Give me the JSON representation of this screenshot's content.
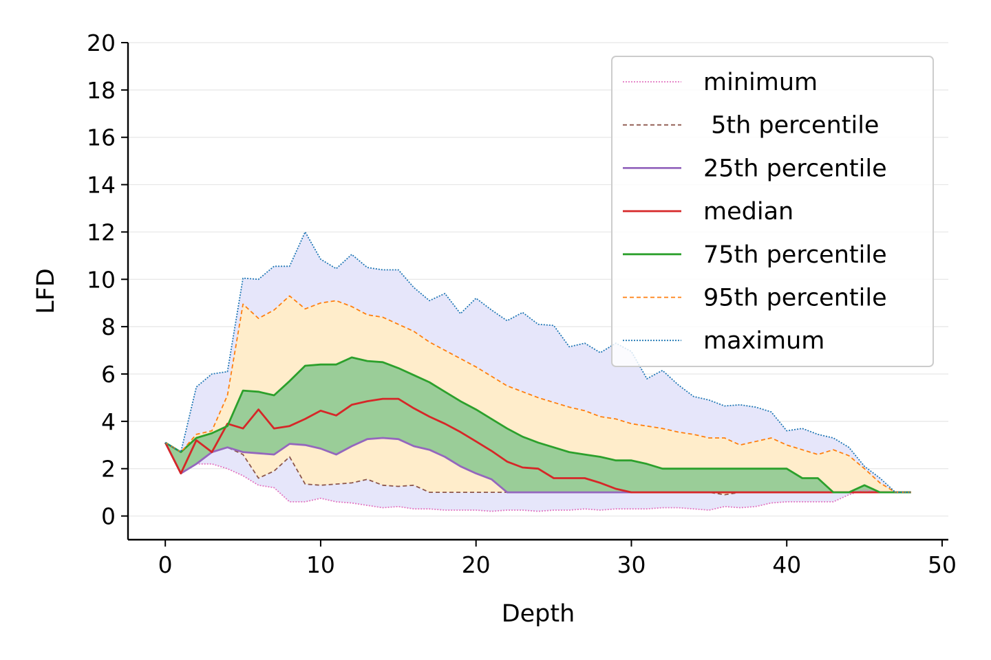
{
  "chart_data": {
    "type": "line",
    "xlabel": "Depth",
    "ylabel": "LFD",
    "xlim": [
      -2.4,
      50.4
    ],
    "ylim": [
      -1,
      20
    ],
    "xticks": [
      0,
      10,
      20,
      30,
      40,
      50
    ],
    "yticks": [
      0,
      2,
      4,
      6,
      8,
      10,
      12,
      14,
      16,
      18,
      20
    ],
    "grid": "horizontal",
    "legend_position": "top-right",
    "x": [
      0,
      1,
      2,
      3,
      4,
      5,
      6,
      7,
      8,
      9,
      10,
      11,
      12,
      13,
      14,
      15,
      16,
      17,
      18,
      19,
      20,
      21,
      22,
      23,
      24,
      25,
      26,
      27,
      28,
      29,
      30,
      31,
      32,
      33,
      34,
      35,
      36,
      37,
      38,
      39,
      40,
      41,
      42,
      43,
      44,
      45,
      46,
      47,
      48
    ],
    "series": [
      {
        "name": "minimum",
        "color": "#e377c2",
        "style": "dotted",
        "values": [
          3.1,
          1.8,
          2.2,
          2.2,
          2.0,
          1.7,
          1.3,
          1.2,
          0.6,
          0.6,
          0.75,
          0.6,
          0.55,
          0.45,
          0.35,
          0.4,
          0.3,
          0.3,
          0.25,
          0.25,
          0.25,
          0.2,
          0.25,
          0.25,
          0.2,
          0.25,
          0.25,
          0.3,
          0.25,
          0.3,
          0.3,
          0.3,
          0.35,
          0.35,
          0.3,
          0.25,
          0.4,
          0.35,
          0.4,
          0.55,
          0.6,
          0.6,
          0.6,
          0.6,
          0.9,
          1.1,
          1.0,
          1.0,
          1.0
        ]
      },
      {
        "name": " 5th percentile",
        "color": "#8c564b",
        "style": "dashed",
        "values": [
          3.1,
          1.8,
          2.2,
          2.7,
          2.9,
          2.6,
          1.6,
          1.9,
          2.5,
          1.35,
          1.3,
          1.35,
          1.4,
          1.55,
          1.3,
          1.25,
          1.3,
          1.0,
          1.0,
          1.0,
          1.0,
          1.0,
          1.0,
          1.0,
          1.0,
          1.0,
          1.0,
          1.0,
          1.0,
          1.0,
          1.0,
          1.0,
          1.0,
          1.0,
          1.0,
          1.0,
          0.9,
          1.0,
          1.0,
          1.0,
          1.0,
          1.0,
          1.0,
          1.0,
          1.0,
          1.0,
          1.0,
          1.0,
          1.0
        ]
      },
      {
        "name": "25th percentile",
        "color": "#9467bd",
        "style": "solid",
        "values": [
          3.1,
          1.8,
          2.2,
          2.7,
          2.9,
          2.7,
          2.65,
          2.6,
          3.05,
          3.0,
          2.85,
          2.6,
          2.95,
          3.25,
          3.3,
          3.25,
          2.95,
          2.8,
          2.5,
          2.1,
          1.8,
          1.55,
          1.0,
          1.0,
          1.0,
          1.0,
          1.0,
          1.0,
          1.0,
          1.0,
          1.0,
          1.0,
          1.0,
          1.0,
          1.0,
          1.0,
          1.0,
          1.0,
          1.0,
          1.0,
          1.0,
          1.0,
          1.0,
          1.0,
          1.0,
          1.0,
          1.0,
          1.0,
          1.0
        ]
      },
      {
        "name": "median",
        "color": "#d62728",
        "style": "solid",
        "values": [
          3.1,
          1.8,
          3.2,
          2.7,
          3.9,
          3.7,
          4.5,
          3.7,
          3.8,
          4.1,
          4.45,
          4.25,
          4.7,
          4.85,
          4.95,
          4.95,
          4.55,
          4.2,
          3.9,
          3.55,
          3.15,
          2.75,
          2.3,
          2.05,
          2.0,
          1.6,
          1.6,
          1.6,
          1.4,
          1.15,
          1.0,
          1.0,
          1.0,
          1.0,
          1.0,
          1.0,
          1.0,
          1.0,
          1.0,
          1.0,
          1.0,
          1.0,
          1.0,
          1.0,
          1.0,
          1.0,
          1.0,
          1.0,
          1.0
        ]
      },
      {
        "name": "75th percentile",
        "color": "#2ca02c",
        "style": "solid",
        "values": [
          3.1,
          2.7,
          3.3,
          3.5,
          3.8,
          5.3,
          5.25,
          5.1,
          5.7,
          6.35,
          6.4,
          6.4,
          6.7,
          6.55,
          6.5,
          6.25,
          5.95,
          5.65,
          5.25,
          4.85,
          4.5,
          4.1,
          3.7,
          3.35,
          3.1,
          2.9,
          2.7,
          2.6,
          2.5,
          2.35,
          2.35,
          2.2,
          2.0,
          2.0,
          2.0,
          2.0,
          2.0,
          2.0,
          2.0,
          2.0,
          2.0,
          1.6,
          1.6,
          1.0,
          1.0,
          1.3,
          1.0,
          1.0,
          1.0
        ]
      },
      {
        "name": "95th percentile",
        "color": "#ff7f0e",
        "style": "dashed",
        "values": [
          3.1,
          2.7,
          3.45,
          3.6,
          5.1,
          8.95,
          8.35,
          8.7,
          9.3,
          8.75,
          9.0,
          9.1,
          8.85,
          8.5,
          8.4,
          8.1,
          7.8,
          7.35,
          7.0,
          6.65,
          6.3,
          5.9,
          5.5,
          5.25,
          5.0,
          4.8,
          4.6,
          4.45,
          4.2,
          4.1,
          3.9,
          3.8,
          3.7,
          3.55,
          3.45,
          3.3,
          3.3,
          3.0,
          3.15,
          3.3,
          3.0,
          2.8,
          2.6,
          2.8,
          2.55,
          2.0,
          1.4,
          1.0,
          1.0
        ]
      },
      {
        "name": "maximum",
        "color": "#1f77b4",
        "style": "dotted",
        "values": [
          3.1,
          2.7,
          5.45,
          6.0,
          6.1,
          10.05,
          10.0,
          10.55,
          10.55,
          12.0,
          10.85,
          10.45,
          11.05,
          10.5,
          10.4,
          10.4,
          9.65,
          9.1,
          9.4,
          8.55,
          9.2,
          8.7,
          8.25,
          8.6,
          8.1,
          8.05,
          7.15,
          7.3,
          6.9,
          7.3,
          6.95,
          5.8,
          6.15,
          5.55,
          5.05,
          4.9,
          4.65,
          4.7,
          4.6,
          4.4,
          3.6,
          3.7,
          3.45,
          3.3,
          2.9,
          2.1,
          1.6,
          1.0,
          1.0
        ]
      }
    ],
    "bands": [
      {
        "lower": "minimum",
        "upper": "maximum",
        "color": "#e6e6fa"
      },
      {
        "lower": " 5th percentile",
        "upper": "95th percentile",
        "color": "#ffedcb"
      },
      {
        "lower": "25th percentile",
        "upper": "75th percentile",
        "color": "#9acd98"
      }
    ]
  }
}
